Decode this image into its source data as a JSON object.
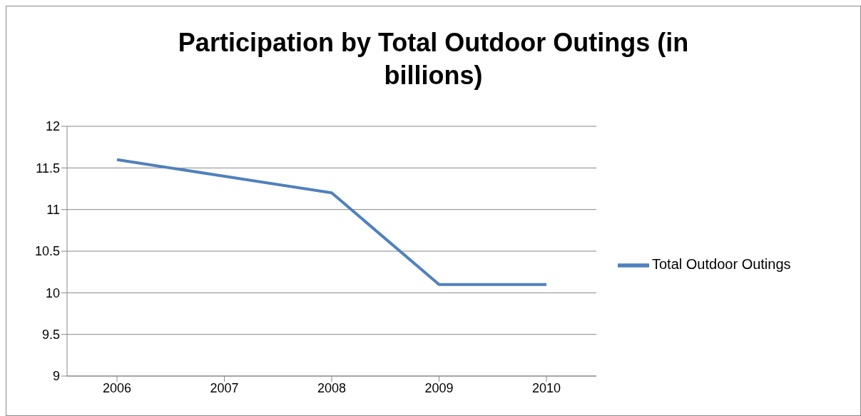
{
  "chart_data": {
    "type": "line",
    "title": "Participation by Total Outdoor Outings (in billions)",
    "categories": [
      "2006",
      "2007",
      "2008",
      "2009",
      "2010"
    ],
    "series": [
      {
        "name": "Total Outdoor Outings",
        "color": "#4f81bd",
        "values": [
          11.6,
          11.4,
          11.2,
          10.1,
          10.1
        ]
      }
    ],
    "ylim": [
      9,
      12
    ],
    "yticks": [
      9,
      9.5,
      10,
      10.5,
      11,
      11.5,
      12
    ],
    "grid": "y",
    "legend": "right",
    "marker": "none",
    "line_style": "solid"
  }
}
